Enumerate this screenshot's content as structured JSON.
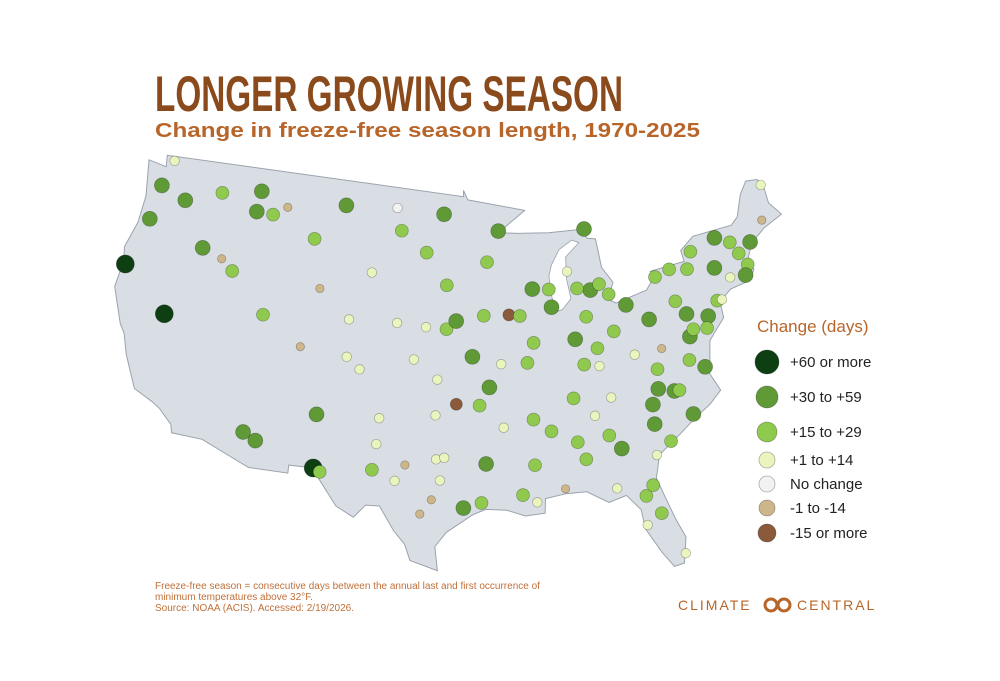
{
  "header": {
    "title": "LONGER GROWING SEASON",
    "subtitle": "Change in freeze-free season length, 1970-2025"
  },
  "legend": {
    "title": "Change (days)",
    "items": [
      {
        "label": "+60 or more",
        "color": "#0e3f12"
      },
      {
        "label": "+30 to +59",
        "color": "#5f9a37"
      },
      {
        "label": "+15 to +29",
        "color": "#8fc94d"
      },
      {
        "label": "+1 to +14",
        "color": "#e9f5bd"
      },
      {
        "label": "No change",
        "color": "#f2f2f2"
      },
      {
        "label": "-1 to -14",
        "color": "#cdb68a"
      },
      {
        "label": "-15 or more",
        "color": "#8a5a3a"
      }
    ]
  },
  "stations": [
    {
      "lon": -122.4,
      "lat": 48.8,
      "class": 3
    },
    {
      "lon": -122.9,
      "lat": 47.1,
      "class": 1
    },
    {
      "lon": -120.5,
      "lat": 46.6,
      "class": 1
    },
    {
      "lon": -117.4,
      "lat": 47.6,
      "class": 2
    },
    {
      "lon": -123.1,
      "lat": 44.9,
      "class": 1
    },
    {
      "lon": -118.0,
      "lat": 44.0,
      "class": 1
    },
    {
      "lon": -124.0,
      "lat": 41.8,
      "class": 0
    },
    {
      "lon": -119.8,
      "lat": 39.5,
      "class": 0
    },
    {
      "lon": -116.2,
      "lat": 43.6,
      "class": 5
    },
    {
      "lon": -115.1,
      "lat": 43.0,
      "class": 2
    },
    {
      "lon": -114.0,
      "lat": 46.9,
      "class": 1
    },
    {
      "lon": -112.5,
      "lat": 46.9,
      "class": 2
    },
    {
      "lon": -113.9,
      "lat": 48.2,
      "class": 1
    },
    {
      "lon": -111.3,
      "lat": 47.5,
      "class": 5
    },
    {
      "lon": -108.5,
      "lat": 45.8,
      "class": 2
    },
    {
      "lon": -106.0,
      "lat": 48.1,
      "class": 1
    },
    {
      "lon": -101.3,
      "lat": 48.2,
      "class": 4
    },
    {
      "lon": -107.5,
      "lat": 42.8,
      "class": 5
    },
    {
      "lon": -104.8,
      "lat": 41.1,
      "class": 3
    },
    {
      "lon": -111.9,
      "lat": 40.7,
      "class": 2
    },
    {
      "lon": -108.5,
      "lat": 39.1,
      "class": 5
    },
    {
      "lon": -104.7,
      "lat": 38.8,
      "class": 3
    },
    {
      "lon": -103.6,
      "lat": 38.1,
      "class": 3
    },
    {
      "lon": -111.9,
      "lat": 33.4,
      "class": 1
    },
    {
      "lon": -110.9,
      "lat": 33.0,
      "class": 1
    },
    {
      "lon": -106.6,
      "lat": 35.1,
      "class": 1
    },
    {
      "lon": -106.4,
      "lat": 31.8,
      "class": 0
    },
    {
      "lon": -105.9,
      "lat": 31.6,
      "class": 2
    },
    {
      "lon": -101.8,
      "lat": 35.2,
      "class": 3
    },
    {
      "lon": -101.9,
      "lat": 33.6,
      "class": 3
    },
    {
      "lon": -97.4,
      "lat": 32.8,
      "class": 3
    },
    {
      "lon": -96.8,
      "lat": 32.9,
      "class": 3
    },
    {
      "lon": -100.4,
      "lat": 31.4,
      "class": 3
    },
    {
      "lon": -98.5,
      "lat": 29.4,
      "class": 5
    },
    {
      "lon": -97.7,
      "lat": 30.3,
      "class": 5
    },
    {
      "lon": -102.1,
      "lat": 32.0,
      "class": 2
    },
    {
      "lon": -95.4,
      "lat": 29.8,
      "class": 1
    },
    {
      "lon": -94.1,
      "lat": 30.1,
      "class": 2
    },
    {
      "lon": -97.1,
      "lat": 31.5,
      "class": 3
    },
    {
      "lon": -99.7,
      "lat": 32.4,
      "class": 5
    },
    {
      "lon": -97.5,
      "lat": 35.5,
      "class": 3
    },
    {
      "lon": -97.4,
      "lat": 37.7,
      "class": 3
    },
    {
      "lon": -99.3,
      "lat": 38.9,
      "class": 3
    },
    {
      "lon": -96.7,
      "lat": 40.8,
      "class": 2
    },
    {
      "lon": -98.4,
      "lat": 40.9,
      "class": 3
    },
    {
      "lon": -100.8,
      "lat": 41.1,
      "class": 3
    },
    {
      "lon": -95.9,
      "lat": 41.3,
      "class": 1
    },
    {
      "lon": -96.7,
      "lat": 43.5,
      "class": 2
    },
    {
      "lon": -98.5,
      "lat": 45.5,
      "class": 2
    },
    {
      "lon": -100.8,
      "lat": 46.8,
      "class": 2
    },
    {
      "lon": -97.0,
      "lat": 47.9,
      "class": 1
    },
    {
      "lon": -103.2,
      "lat": 44.1,
      "class": 3
    },
    {
      "lon": -95.9,
      "lat": 36.2,
      "class": 6
    },
    {
      "lon": -94.6,
      "lat": 39.1,
      "class": 1
    },
    {
      "lon": -93.2,
      "lat": 44.9,
      "class": 2
    },
    {
      "lon": -92.1,
      "lat": 46.8,
      "class": 1
    },
    {
      "lon": -93.6,
      "lat": 41.6,
      "class": 2
    },
    {
      "lon": -91.5,
      "lat": 41.6,
      "class": 6
    },
    {
      "lon": -90.6,
      "lat": 41.5,
      "class": 2
    },
    {
      "lon": -89.4,
      "lat": 43.1,
      "class": 1
    },
    {
      "lon": -88.0,
      "lat": 43.0,
      "class": 2
    },
    {
      "lon": -87.9,
      "lat": 41.9,
      "class": 1
    },
    {
      "lon": -89.6,
      "lat": 39.8,
      "class": 2
    },
    {
      "lon": -90.2,
      "lat": 38.6,
      "class": 2
    },
    {
      "lon": -92.3,
      "lat": 38.6,
      "class": 3
    },
    {
      "lon": -93.3,
      "lat": 37.2,
      "class": 1
    },
    {
      "lon": -86.2,
      "lat": 39.8,
      "class": 1
    },
    {
      "lon": -85.1,
      "lat": 41.1,
      "class": 2
    },
    {
      "lon": -84.5,
      "lat": 42.7,
      "class": 1
    },
    {
      "lon": -83.0,
      "lat": 42.3,
      "class": 2
    },
    {
      "lon": -85.6,
      "lat": 42.9,
      "class": 2
    },
    {
      "lon": -84.4,
      "lat": 46.5,
      "class": 1
    },
    {
      "lon": -86.3,
      "lat": 44.0,
      "class": 3
    },
    {
      "lon": -83.7,
      "lat": 43.0,
      "class": 2
    },
    {
      "lon": -81.7,
      "lat": 41.5,
      "class": 1
    },
    {
      "lon": -83.0,
      "lat": 40.0,
      "class": 2
    },
    {
      "lon": -84.5,
      "lat": 39.1,
      "class": 2
    },
    {
      "lon": -80.0,
      "lat": 40.4,
      "class": 1
    },
    {
      "lon": -85.7,
      "lat": 38.2,
      "class": 2
    },
    {
      "lon": -84.5,
      "lat": 38.0,
      "class": 3
    },
    {
      "lon": -86.8,
      "lat": 36.2,
      "class": 2
    },
    {
      "lon": -90.0,
      "lat": 35.1,
      "class": 2
    },
    {
      "lon": -85.3,
      "lat": 35.0,
      "class": 3
    },
    {
      "lon": -83.9,
      "lat": 36.0,
      "class": 3
    },
    {
      "lon": -92.3,
      "lat": 34.7,
      "class": 3
    },
    {
      "lon": -94.1,
      "lat": 36.1,
      "class": 2
    },
    {
      "lon": -90.1,
      "lat": 32.3,
      "class": 2
    },
    {
      "lon": -88.7,
      "lat": 34.3,
      "class": 2
    },
    {
      "lon": -86.8,
      "lat": 33.5,
      "class": 2
    },
    {
      "lon": -86.3,
      "lat": 32.4,
      "class": 2
    },
    {
      "lon": -88.0,
      "lat": 30.7,
      "class": 5
    },
    {
      "lon": -91.1,
      "lat": 30.5,
      "class": 2
    },
    {
      "lon": -90.1,
      "lat": 30.0,
      "class": 3
    },
    {
      "lon": -93.7,
      "lat": 32.5,
      "class": 1
    },
    {
      "lon": -84.4,
      "lat": 33.7,
      "class": 2
    },
    {
      "lon": -83.6,
      "lat": 32.8,
      "class": 1
    },
    {
      "lon": -81.1,
      "lat": 32.1,
      "class": 3
    },
    {
      "lon": -82.3,
      "lat": 29.7,
      "class": 2
    },
    {
      "lon": -81.4,
      "lat": 28.5,
      "class": 2
    },
    {
      "lon": -80.2,
      "lat": 25.8,
      "class": 3
    },
    {
      "lon": -84.3,
      "lat": 30.4,
      "class": 3
    },
    {
      "lon": -82.5,
      "lat": 27.9,
      "class": 3
    },
    {
      "lon": -81.7,
      "lat": 30.3,
      "class": 2
    },
    {
      "lon": -80.9,
      "lat": 34.0,
      "class": 1
    },
    {
      "lon": -80.8,
      "lat": 35.2,
      "class": 1
    },
    {
      "lon": -79.0,
      "lat": 35.8,
      "class": 1
    },
    {
      "lon": -77.9,
      "lat": 34.2,
      "class": 1
    },
    {
      "lon": -78.6,
      "lat": 35.8,
      "class": 2
    },
    {
      "lon": -80.2,
      "lat": 36.1,
      "class": 1
    },
    {
      "lon": -79.9,
      "lat": 32.8,
      "class": 2
    },
    {
      "lon": -77.4,
      "lat": 37.5,
      "class": 2
    },
    {
      "lon": -77.0,
      "lat": 38.9,
      "class": 1
    },
    {
      "lon": -76.6,
      "lat": 39.3,
      "class": 2
    },
    {
      "lon": -75.2,
      "lat": 39.9,
      "class": 1
    },
    {
      "lon": -74.2,
      "lat": 40.7,
      "class": 2
    },
    {
      "lon": -76.1,
      "lat": 43.0,
      "class": 2
    },
    {
      "lon": -73.8,
      "lat": 42.7,
      "class": 1
    },
    {
      "lon": -77.6,
      "lat": 43.2,
      "class": 2
    },
    {
      "lon": -78.9,
      "lat": 42.9,
      "class": 2
    },
    {
      "lon": -72.7,
      "lat": 41.9,
      "class": 3
    },
    {
      "lon": -71.0,
      "lat": 42.4,
      "class": 2
    },
    {
      "lon": -71.4,
      "lat": 41.8,
      "class": 1
    },
    {
      "lon": -73.2,
      "lat": 44.5,
      "class": 1
    },
    {
      "lon": -71.5,
      "lat": 43.2,
      "class": 2
    },
    {
      "lon": -70.3,
      "lat": 43.7,
      "class": 1
    },
    {
      "lon": -68.8,
      "lat": 44.8,
      "class": 5
    },
    {
      "lon": -68.0,
      "lat": 46.9,
      "class": 3
    },
    {
      "lon": -72.0,
      "lat": 44.0,
      "class": 2
    },
    {
      "lon": -75.5,
      "lat": 44.0,
      "class": 2
    },
    {
      "lon": -76.9,
      "lat": 40.3,
      "class": 1
    },
    {
      "lon": -77.6,
      "lat": 41.2,
      "class": 2
    },
    {
      "lon": -81.6,
      "lat": 38.4,
      "class": 3
    },
    {
      "lon": -80.0,
      "lat": 37.3,
      "class": 2
    },
    {
      "lon": -76.3,
      "lat": 36.9,
      "class": 1
    },
    {
      "lon": -75.5,
      "lat": 39.2,
      "class": 2
    },
    {
      "lon": -79.4,
      "lat": 38.5,
      "class": 5
    },
    {
      "lon": -73.8,
      "lat": 40.7,
      "class": 3
    }
  ],
  "footnote": [
    "Freeze-free season = consecutive days between the annual last and first occurrence of",
    "minimum temperatures above 32°F.",
    "Source: NOAA (ACIS). Accessed: 2/19/2026."
  ],
  "logo": {
    "left": "CLIMATE",
    "right": "CENTRAL"
  }
}
